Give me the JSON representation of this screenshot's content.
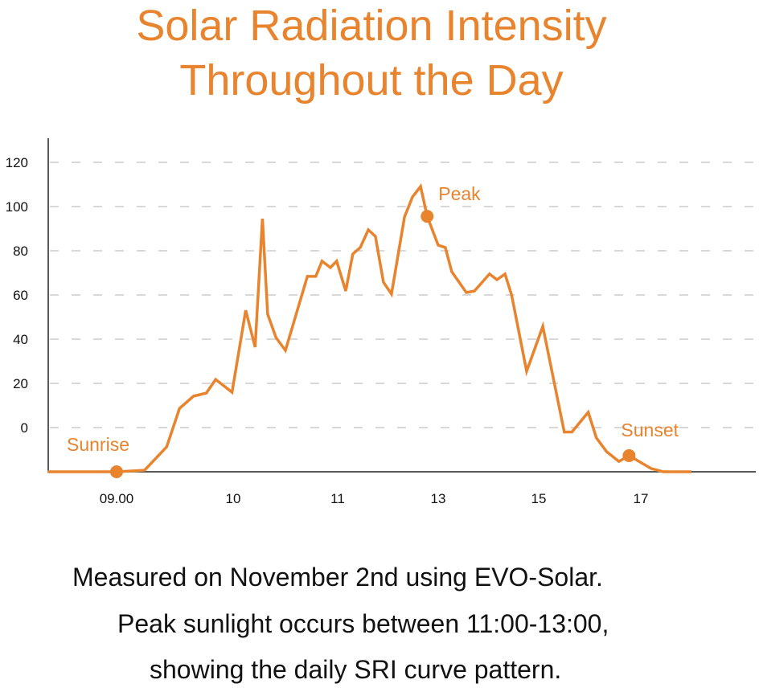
{
  "chart_data": {
    "type": "line",
    "title_lines": [
      "Solar Radiation Intensity",
      "Throughout the Day"
    ],
    "xlabel": "",
    "ylabel": "",
    "colors": {
      "line": "#E8832E",
      "title": "#E8832E",
      "grid": "#cccccc",
      "axis": "#222222"
    },
    "grid": true,
    "ylim": [
      -20,
      131
    ],
    "xlim": [
      8.41,
      19.25
    ],
    "y_ticks": [
      0,
      20,
      40,
      60,
      80,
      100,
      120
    ],
    "y_tick_labels": [
      "0",
      "20",
      "40",
      "60",
      "80",
      "100",
      "120"
    ],
    "x_ticks": [
      9,
      10,
      11,
      13,
      15,
      17
    ],
    "x_tick_labels": [
      "09.00",
      "10",
      "11",
      "13",
      "15",
      "17"
    ],
    "series": [
      {
        "x": [
          8.41,
          9.0,
          9.24,
          9.43,
          9.54,
          9.66,
          9.77,
          9.85,
          9.99,
          10.12,
          10.21,
          10.28,
          10.33,
          10.41,
          10.5,
          10.71,
          10.79,
          10.85,
          10.93,
          10.99,
          11.16,
          11.3,
          11.45,
          11.61,
          11.75,
          11.91,
          12.07,
          12.33,
          12.49,
          12.65,
          12.78,
          13.0,
          13.14,
          13.27,
          13.56,
          13.72,
          14.02,
          14.17,
          14.33,
          14.46,
          14.76,
          15.08,
          15.5,
          15.65,
          15.97,
          16.13,
          16.33,
          16.57,
          16.77,
          17.2,
          17.44,
          17.99
        ],
        "y": [
          -20,
          -20,
          -19.3,
          -8.7,
          8.7,
          14.2,
          15.6,
          21.8,
          16,
          53.1,
          36.4,
          94.5,
          51.3,
          40.7,
          34.9,
          68.4,
          68.4,
          75.3,
          72.4,
          75.3,
          61.8,
          78.5,
          81.5,
          89.5,
          86.5,
          65.8,
          60.4,
          95.3,
          104.4,
          109.1,
          95.6,
          82.5,
          81.5,
          70.5,
          61.1,
          61.8,
          69.5,
          66.9,
          69.5,
          60,
          25.5,
          45.8,
          -2,
          -2,
          6.9,
          -4.7,
          -10.9,
          -15.3,
          -12.7,
          -18.5,
          -20,
          -20
        ]
      }
    ],
    "annotations": [
      {
        "label": "Sunrise",
        "x": 9.0,
        "y": -20
      },
      {
        "label": "Peak",
        "x": 12.78,
        "y": 95.6
      },
      {
        "label": "Sunset",
        "x": 16.77,
        "y": -12.7
      }
    ]
  },
  "caption": [
    "Measured on November 2nd using EVO-Solar.",
    "Peak sunlight occurs between 11:00-13:00,",
    "showing the daily SRI curve pattern."
  ]
}
